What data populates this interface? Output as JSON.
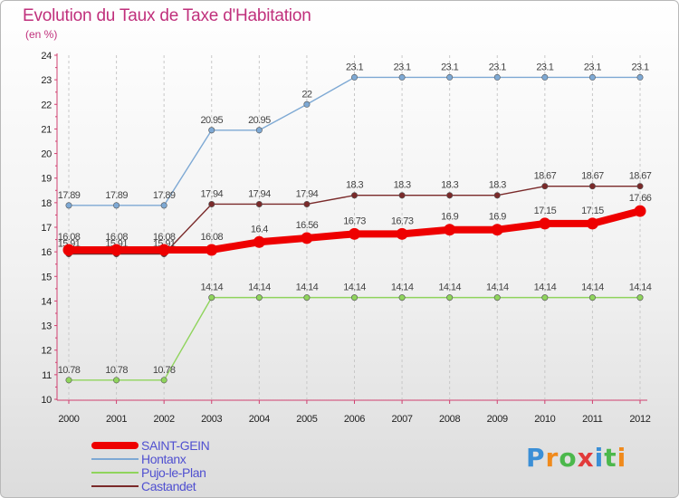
{
  "header": {
    "title": "Evolution du Taux de Taxe d'Habitation",
    "subtitle": "(en %)"
  },
  "logo": {
    "text": "Proxiti",
    "letter_colors": [
      "#3b8fd6",
      "#f08a1c",
      "#4cb84c",
      "#e23b3b",
      "#3b8fd6",
      "#4cb84c",
      "#f08a1c"
    ]
  },
  "chart_data": {
    "type": "line",
    "x": [
      "2000",
      "2001",
      "2002",
      "2003",
      "2004",
      "2005",
      "2006",
      "2007",
      "2008",
      "2009",
      "2010",
      "2011",
      "2012"
    ],
    "ylim": [
      10,
      24
    ],
    "yticks": [
      "10",
      "11",
      "12",
      "13",
      "14",
      "15",
      "16",
      "17",
      "18",
      "19",
      "20",
      "21",
      "22",
      "23",
      "24"
    ],
    "grid": "vertical-dashed",
    "legend_position": "bottom-left",
    "series": [
      {
        "name": "Castandet",
        "color": "#7a2a2a",
        "values": [
          15.91,
          15.91,
          15.91,
          17.94,
          17.94,
          17.94,
          18.3,
          18.3,
          18.3,
          18.3,
          18.67,
          18.67,
          18.67
        ],
        "labels": [
          "15.91",
          "15.91",
          "15.91",
          "17.94",
          "17.94",
          "17.94",
          "18.3",
          "18.3",
          "18.3",
          "18.3",
          "18.67",
          "18.67",
          "18.67"
        ]
      },
      {
        "name": "Pujo-le-Plan",
        "color": "#8fd45c",
        "values": [
          10.78,
          10.78,
          10.78,
          14.14,
          14.14,
          14.14,
          14.14,
          14.14,
          14.14,
          14.14,
          14.14,
          14.14,
          14.14
        ],
        "labels": [
          "10.78",
          "10.78",
          "10.78",
          "14.14",
          "14.14",
          "14.14",
          "14.14",
          "14.14",
          "14.14",
          "14.14",
          "14.14",
          "14.14",
          "14.14"
        ]
      },
      {
        "name": "Hontanx",
        "color": "#7ea9d4",
        "values": [
          17.89,
          17.89,
          17.89,
          20.95,
          20.95,
          22,
          23.1,
          23.1,
          23.1,
          23.1,
          23.1,
          23.1,
          23.1
        ],
        "labels": [
          "17.89",
          "17.89",
          "17.89",
          "20.95",
          "20.95",
          "22",
          "23.1",
          "23.1",
          "23.1",
          "23.1",
          "23.1",
          "23.1",
          "23.1"
        ]
      },
      {
        "name": "SAINT-GEIN",
        "color": "#ee0000",
        "values": [
          16.08,
          16.08,
          16.08,
          16.08,
          16.4,
          16.56,
          16.73,
          16.73,
          16.9,
          16.9,
          17.15,
          17.15,
          17.66
        ],
        "labels": [
          "16.08",
          "16.08",
          "16.08",
          "16.08",
          "16.4",
          "16.56",
          "16.73",
          "16.73",
          "16.9",
          "16.9",
          "17.15",
          "17.15",
          "17.66"
        ]
      }
    ]
  },
  "legend": {
    "items": [
      {
        "label": "SAINT-GEIN",
        "color": "#ee0000",
        "thickness": 8
      },
      {
        "label": "Hontanx",
        "color": "#7ea9d4",
        "thickness": 2
      },
      {
        "label": "Pujo-le-Plan",
        "color": "#8fd45c",
        "thickness": 2
      },
      {
        "label": "Castandet",
        "color": "#7a2a2a",
        "thickness": 2
      }
    ]
  }
}
